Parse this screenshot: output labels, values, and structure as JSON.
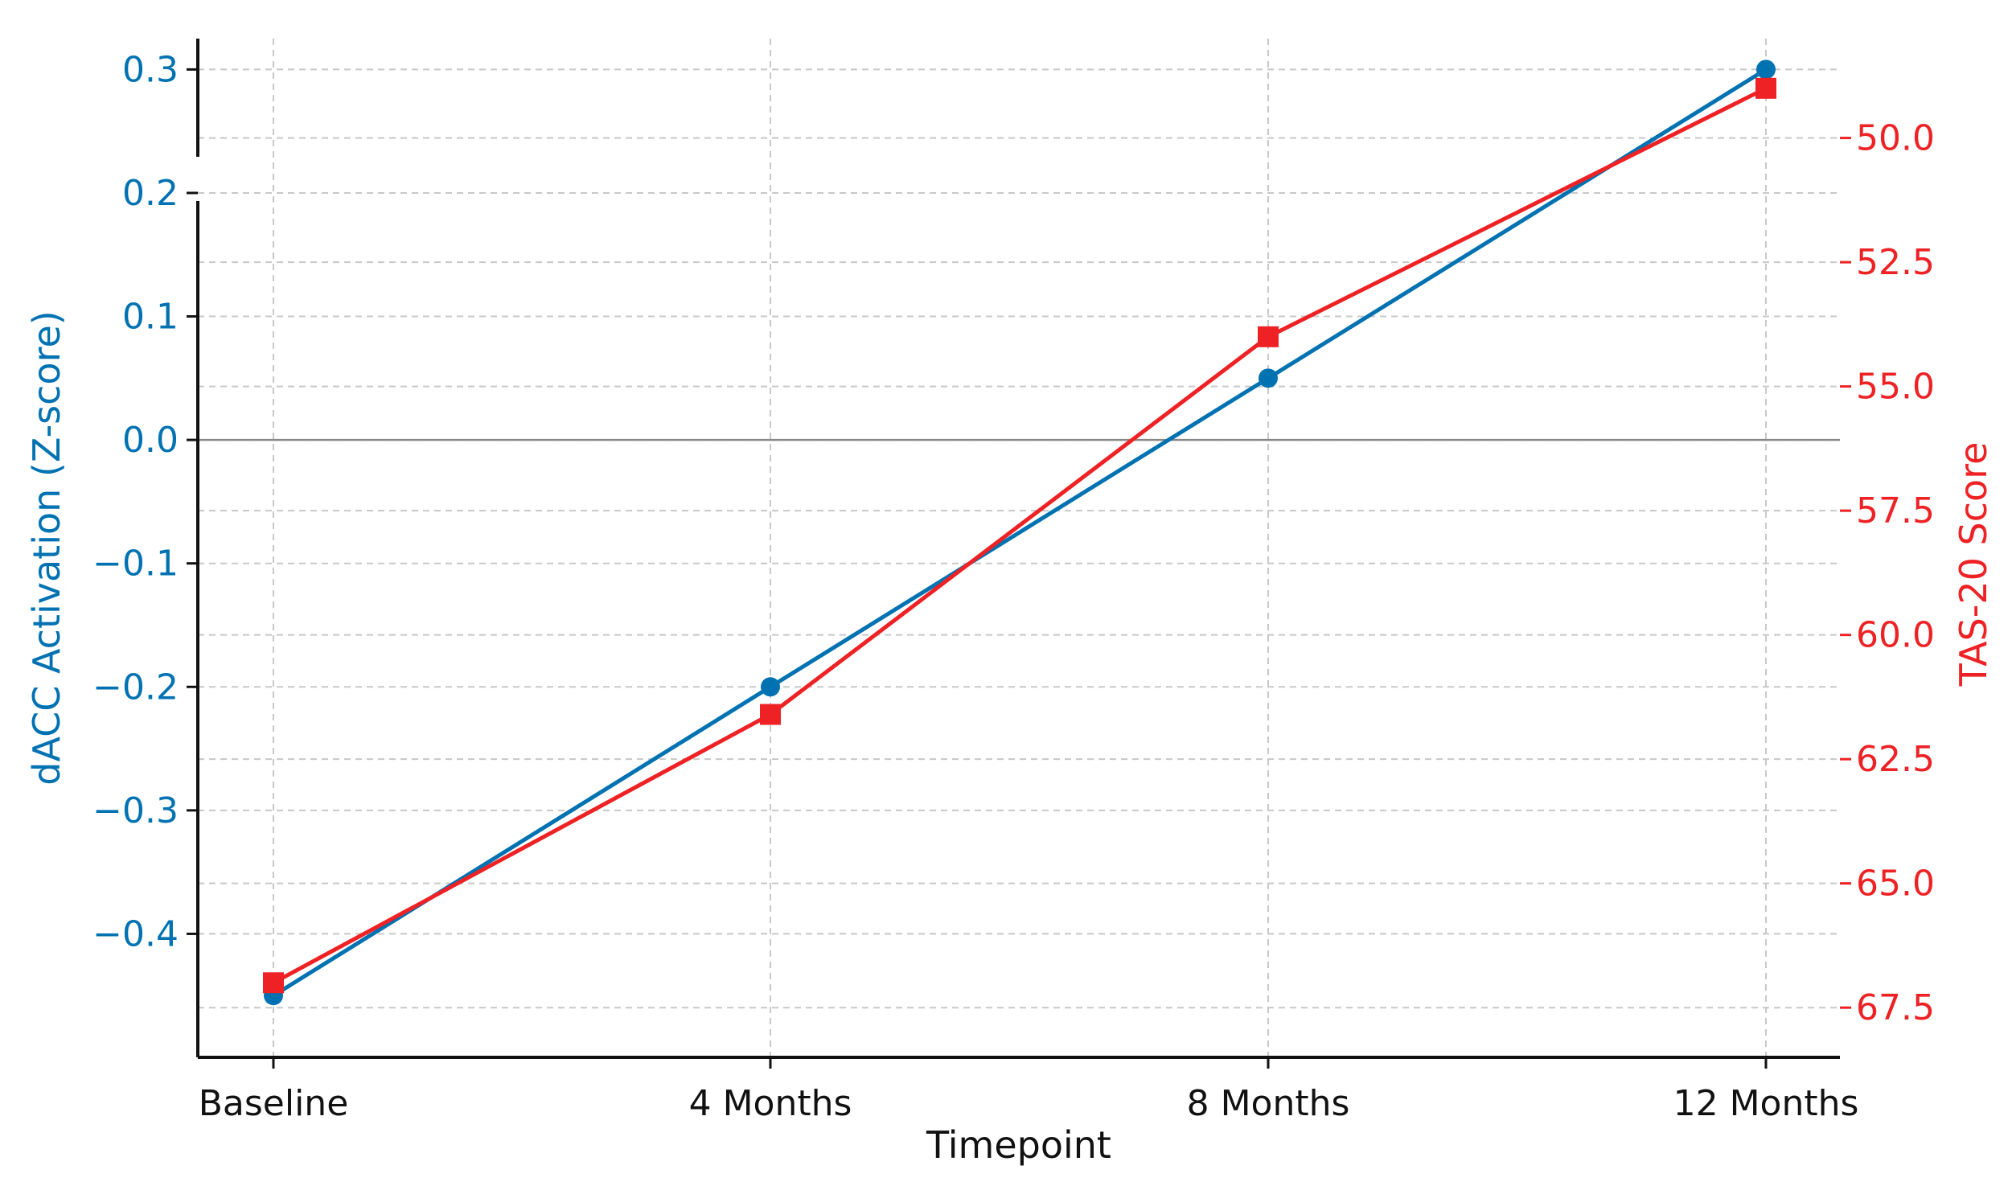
{
  "chart_data": {
    "type": "line",
    "categories": [
      "Baseline",
      "4 Months",
      "8 Months",
      "12 Months"
    ],
    "xlabel": "Timepoint",
    "grid": true,
    "legend": "none",
    "series": [
      {
        "axis": "left",
        "values": [
          -0.45,
          -0.2,
          0.05,
          0.3
        ],
        "color": "#0072b2",
        "marker": "circle"
      },
      {
        "axis": "right",
        "values": [
          67.0,
          61.6,
          54.0,
          49.0
        ],
        "color": "#ee2224",
        "marker": "square"
      }
    ],
    "left_axis": {
      "label": "dACC Activation (Z-score)",
      "color": "#0072b2",
      "range": [
        -0.5,
        0.325
      ],
      "ticks": [
        -0.4,
        -0.3,
        -0.2,
        -0.1,
        0.0,
        0.1,
        0.2,
        0.3
      ],
      "tick_labels": [
        "−0.4",
        "−0.3",
        "−0.2",
        "−0.1",
        "0.0",
        "0.1",
        "0.2",
        "0.3"
      ]
    },
    "right_axis": {
      "label": "TAS-20 Score",
      "color": "#ee2224",
      "inverted": true,
      "range": [
        68.5,
        48.0
      ],
      "ticks": [
        50.0,
        52.5,
        55.0,
        57.5,
        60.0,
        62.5,
        65.0,
        67.5
      ],
      "tick_labels": [
        "50.0",
        "52.5",
        "55.0",
        "57.5",
        "60.0",
        "62.5",
        "65.0",
        "67.5"
      ]
    },
    "reference_line": {
      "y": 0.0,
      "axis": "left",
      "color": "#888888"
    }
  }
}
